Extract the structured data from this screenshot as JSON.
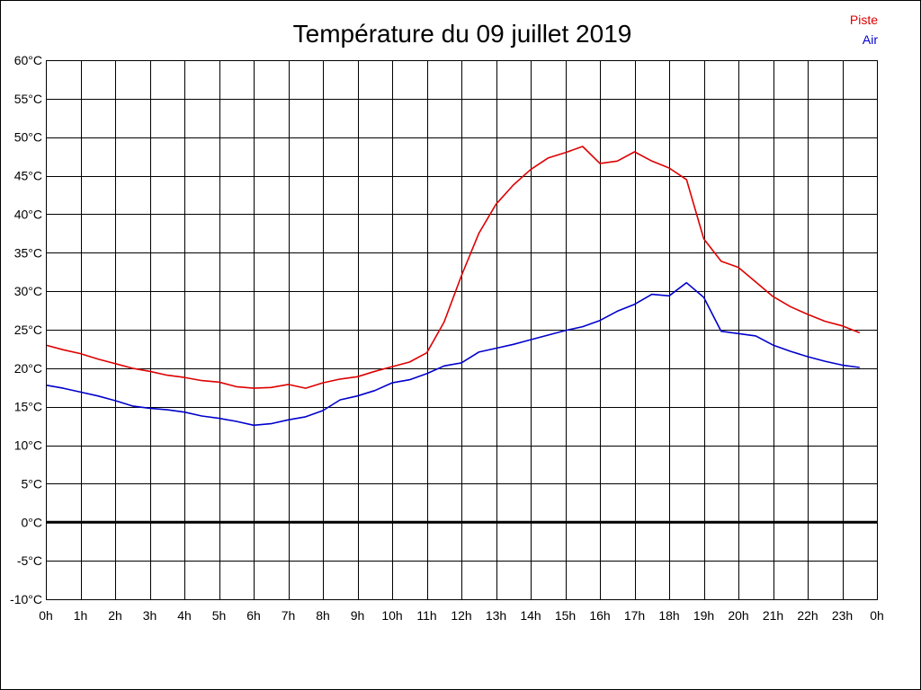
{
  "chart_data": {
    "type": "line",
    "title": "Température du 09 juillet 2019",
    "xlabel": "",
    "ylabel": "",
    "x_range_hours": [
      0,
      24
    ],
    "ylim": [
      -10,
      60
    ],
    "grid": true,
    "legend_position": "top-right",
    "x_tick_labels": [
      "0h",
      "1h",
      "2h",
      "3h",
      "4h",
      "5h",
      "6h",
      "7h",
      "8h",
      "9h",
      "10h",
      "11h",
      "12h",
      "13h",
      "14h",
      "15h",
      "16h",
      "17h",
      "18h",
      "19h",
      "20h",
      "21h",
      "22h",
      "23h",
      "0h"
    ],
    "y_tick_labels": [
      "-10°C",
      "-5°C",
      "0°C",
      "5°C",
      "10°C",
      "15°C",
      "20°C",
      "25°C",
      "30°C",
      "35°C",
      "40°C",
      "45°C",
      "50°C",
      "55°C",
      "60°C"
    ],
    "y_tick_values": [
      -10,
      -5,
      0,
      5,
      10,
      15,
      20,
      25,
      30,
      35,
      40,
      45,
      50,
      55,
      60
    ],
    "zero_line": true,
    "x": [
      0,
      0.5,
      1,
      1.5,
      2,
      2.5,
      3,
      3.5,
      4,
      4.5,
      5,
      5.5,
      6,
      6.5,
      7,
      7.5,
      8,
      8.5,
      9,
      9.5,
      10,
      10.5,
      11,
      11.5,
      12,
      12.5,
      13,
      13.5,
      14,
      14.5,
      15,
      15.5,
      16,
      16.5,
      17,
      17.5,
      18,
      18.5,
      19,
      19.5,
      20,
      20.5,
      21,
      21.5,
      22,
      22.5,
      23,
      23.5
    ],
    "series": [
      {
        "name": "Piste",
        "color": "#dd0000",
        "values": [
          23.0,
          22.4,
          21.9,
          21.2,
          20.6,
          20.0,
          19.6,
          19.1,
          18.8,
          18.4,
          18.2,
          17.6,
          17.4,
          17.5,
          17.9,
          17.4,
          18.1,
          18.6,
          18.9,
          19.6,
          20.2,
          20.8,
          22.0,
          26.0,
          32.0,
          37.5,
          41.3,
          43.8,
          45.8,
          47.3,
          48.0,
          48.8,
          46.6,
          46.9,
          48.1,
          46.9,
          46.0,
          44.5,
          36.8,
          33.9,
          33.1,
          31.2,
          29.3,
          28.0,
          27.0,
          26.1,
          25.5,
          24.6
        ]
      },
      {
        "name": "Air",
        "color": "#0000cc",
        "values": [
          17.8,
          17.4,
          16.9,
          16.4,
          15.8,
          15.1,
          14.8,
          14.6,
          14.3,
          13.8,
          13.5,
          13.1,
          12.6,
          12.8,
          13.3,
          13.7,
          14.5,
          15.9,
          16.4,
          17.1,
          18.1,
          18.5,
          19.3,
          20.3,
          20.7,
          22.1,
          22.6,
          23.1,
          23.7,
          24.3,
          24.9,
          25.4,
          26.2,
          27.4,
          28.3,
          29.6,
          29.4,
          31.1,
          29.2,
          24.8,
          24.5,
          24.2,
          23.0,
          22.2,
          21.5,
          20.9,
          20.4,
          20.1
        ]
      }
    ]
  }
}
